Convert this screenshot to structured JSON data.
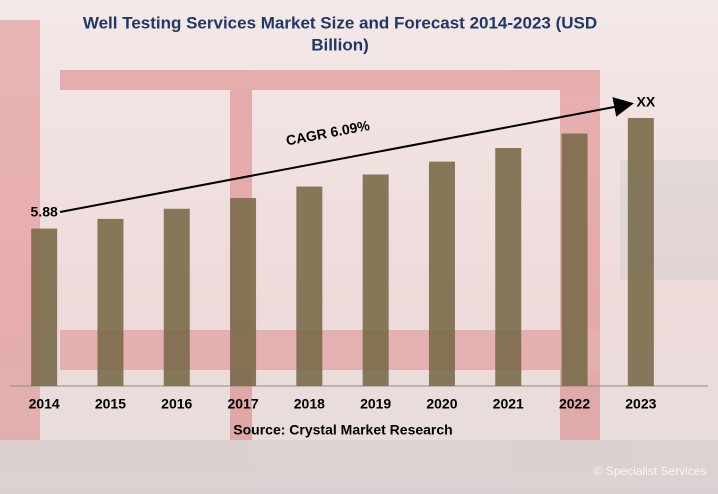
{
  "chart_data": {
    "type": "bar",
    "title": "Well Testing Services Market  Size and Forecast 2014-2023 (USD",
    "title_line2": "Billion)",
    "categories": [
      "2014",
      "2015",
      "2016",
      "2017",
      "2018",
      "2019",
      "2020",
      "2021",
      "2022",
      "2023"
    ],
    "values": [
      5.88,
      6.24,
      6.62,
      7.02,
      7.45,
      7.9,
      8.38,
      8.89,
      9.43,
      10.01
    ],
    "color": "#7a6b4a",
    "annotations": {
      "cagr": "CAGR 6.09%",
      "end_label": "XX"
    },
    "source": "Source: Crystal Market Research",
    "watermark": "© Specialist Services"
  }
}
